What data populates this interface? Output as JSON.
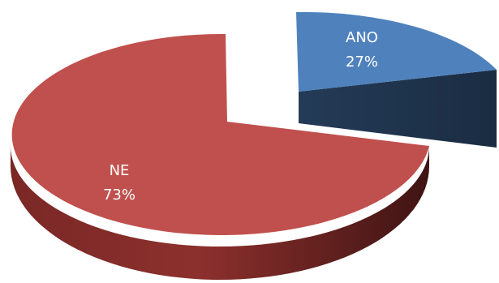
{
  "chart_data": {
    "type": "pie",
    "style": "3d-exploded",
    "slices": [
      {
        "label": "ANO",
        "value": 27,
        "display": "27%",
        "color": "#4F81BD",
        "dark": "#1F3550"
      },
      {
        "label": "NE",
        "value": 73,
        "display": "73%",
        "color": "#C0504D",
        "dark": "#5E1F1D"
      }
    ],
    "legend": "none"
  }
}
